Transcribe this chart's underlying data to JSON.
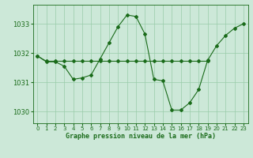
{
  "line1_x": [
    0,
    1,
    2,
    3,
    4,
    5,
    6,
    7,
    8,
    9,
    10,
    11,
    12,
    13,
    14,
    15,
    16,
    17,
    18,
    19,
    20,
    21,
    22,
    23
  ],
  "line1_y": [
    1031.9,
    1031.7,
    1031.7,
    1031.55,
    1031.1,
    1031.15,
    1031.25,
    1031.8,
    1032.35,
    1032.9,
    1033.3,
    1033.25,
    1032.65,
    1031.1,
    1031.05,
    1030.05,
    1030.05,
    1030.3,
    1030.75,
    1031.75,
    1032.25,
    1032.6,
    1032.85,
    1033.0
  ],
  "line2_x": [
    0,
    1,
    2,
    3,
    4,
    5,
    6,
    7,
    8,
    9,
    10,
    11,
    12,
    13,
    14,
    15,
    16,
    17,
    18,
    19
  ],
  "line2_y": [
    1031.9,
    1031.72,
    1031.72,
    1031.72,
    1031.72,
    1031.72,
    1031.72,
    1031.72,
    1031.72,
    1031.72,
    1031.72,
    1031.72,
    1031.72,
    1031.72,
    1031.72,
    1031.72,
    1031.72,
    1031.72,
    1031.72,
    1031.72
  ],
  "line_color": "#1a6b1a",
  "bg_color": "#cce8d8",
  "grid_color": "#99ccaa",
  "ylabel_ticks": [
    1030,
    1031,
    1032,
    1033
  ],
  "xlabel_ticks": [
    0,
    1,
    2,
    3,
    4,
    5,
    6,
    7,
    8,
    9,
    10,
    11,
    12,
    13,
    14,
    15,
    16,
    17,
    18,
    19,
    20,
    21,
    22,
    23
  ],
  "xlabel": "Graphe pression niveau de la mer (hPa)",
  "ylim": [
    1029.6,
    1033.65
  ],
  "xlim": [
    -0.5,
    23.5
  ]
}
